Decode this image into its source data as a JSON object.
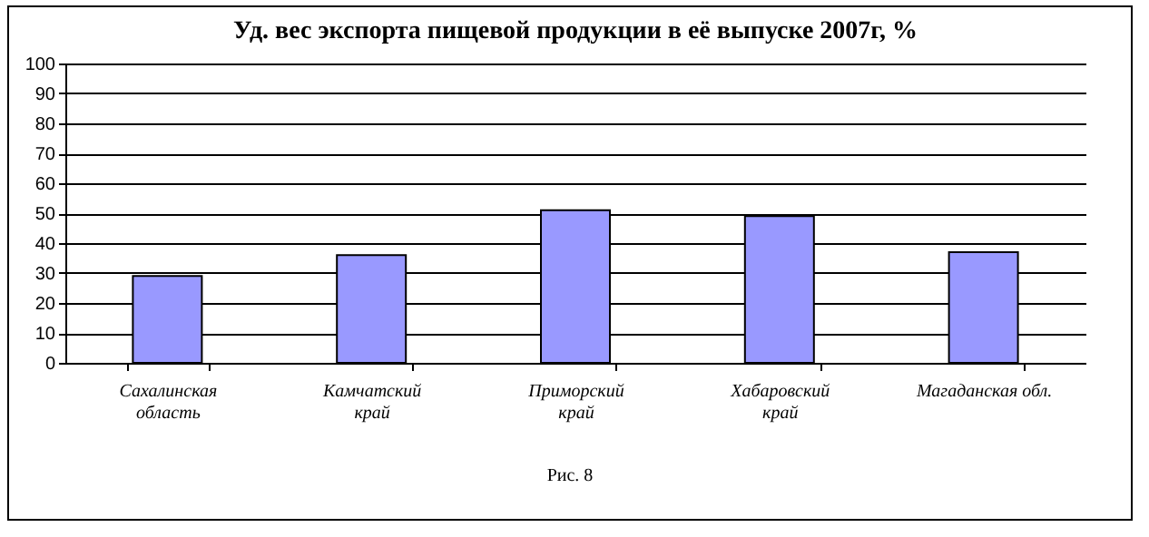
{
  "chart_data": {
    "type": "bar",
    "title": "Уд. вес экспорта пищевой продукции в её выпуске 2007г, %",
    "categories": [
      "Сахалинская\nобласть",
      "Камчатский\nкрай",
      "Приморский\nкрай",
      "Хабаровский\nкрай",
      "Магаданская обл."
    ],
    "values": [
      29,
      36,
      51,
      49,
      37
    ],
    "color": "#9999ff",
    "ylim": [
      0,
      100
    ],
    "yticks": [
      0,
      10,
      20,
      30,
      40,
      50,
      60,
      70,
      80,
      90,
      100
    ],
    "grid": "y",
    "annotations": [
      "Рис. 8"
    ]
  }
}
